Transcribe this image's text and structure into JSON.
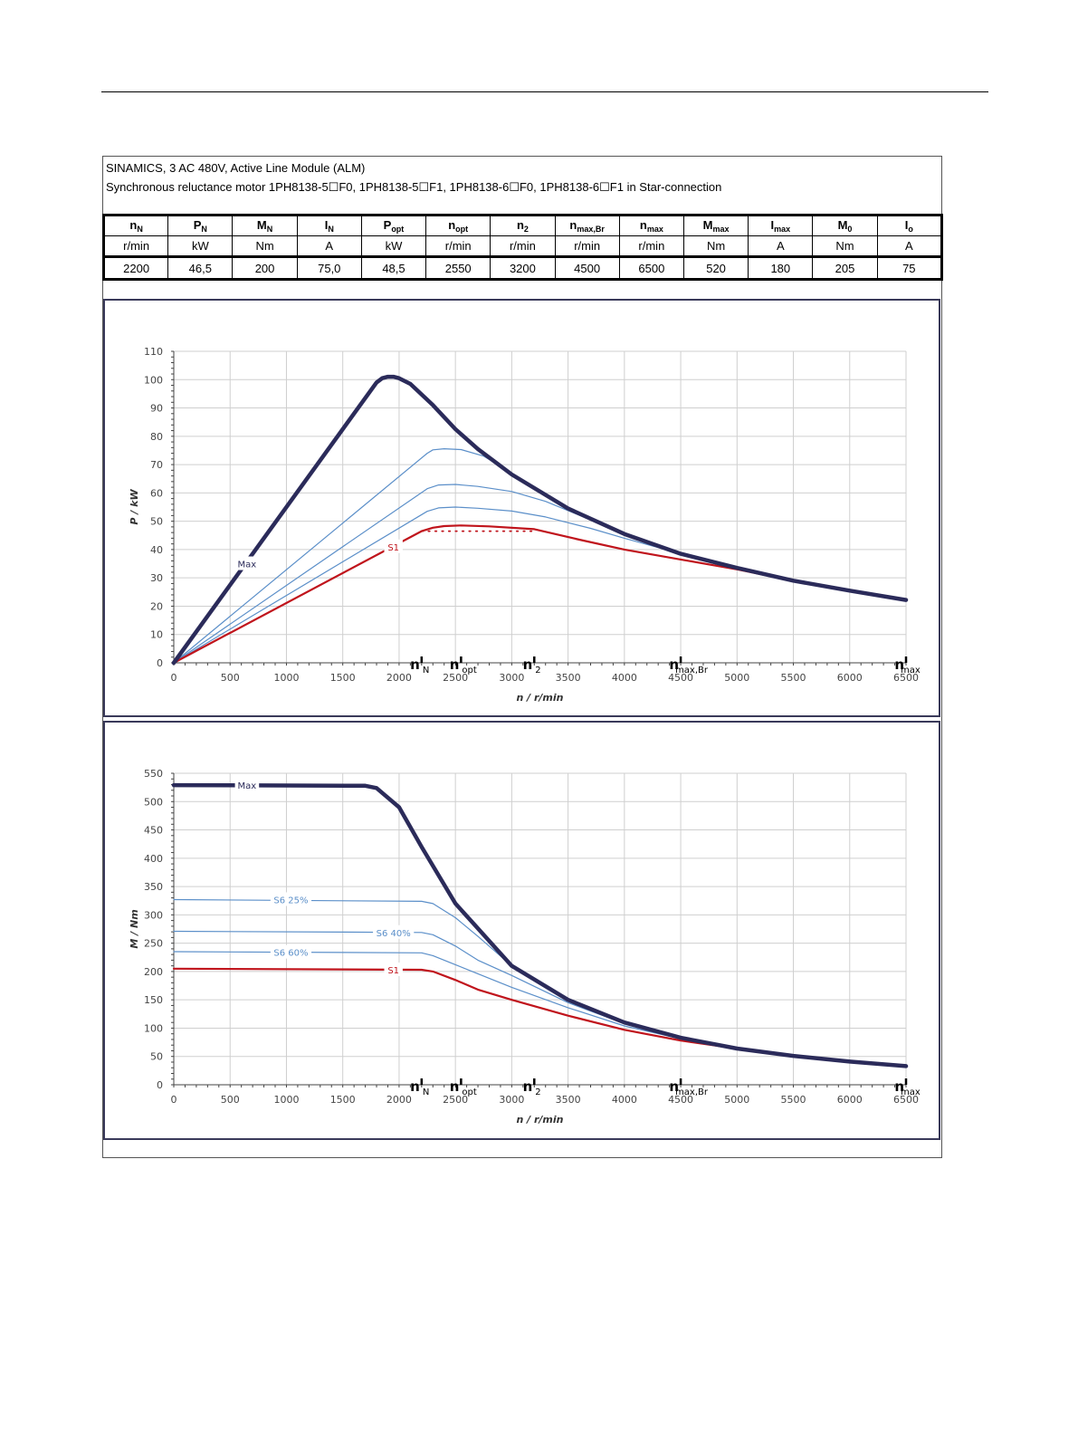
{
  "header": {
    "line1": "SINAMICS, 3 AC 480V, Active Line Module (ALM)",
    "line2": "Synchronous reluctance motor  1PH8138-5☐F0,  1PH8138-5☐F1,  1PH8138-6☐F0,  1PH8138-6☐F1   in Star-connection"
  },
  "spec_table": {
    "symbols": [
      {
        "main": "n",
        "sub": "N"
      },
      {
        "main": "P",
        "sub": "N"
      },
      {
        "main": "M",
        "sub": "N"
      },
      {
        "main": "I",
        "sub": "N"
      },
      {
        "main": "P",
        "sub": "opt"
      },
      {
        "main": "n",
        "sub": "opt"
      },
      {
        "main": "n",
        "sub": "2"
      },
      {
        "main": "n",
        "sub": "max,Br"
      },
      {
        "main": "n",
        "sub": "max"
      },
      {
        "main": "M",
        "sub": "max"
      },
      {
        "main": "I",
        "sub": "max"
      },
      {
        "main": "M",
        "sub": "0"
      },
      {
        "main": "I",
        "sub": "o"
      }
    ],
    "units": [
      "r/min",
      "kW",
      "Nm",
      "A",
      "kW",
      "r/min",
      "r/min",
      "r/min",
      "r/min",
      "Nm",
      "A",
      "Nm",
      "A"
    ],
    "values": [
      "2200",
      "46,5",
      "200",
      "75,0",
      "48,5",
      "2550",
      "3200",
      "4500",
      "6500",
      "520",
      "180",
      "205",
      "75"
    ]
  },
  "colors": {
    "max_curve": "#2b2b5a",
    "s6_curves": "#5b8fc9",
    "s1_curve": "#c0141c",
    "grid": "#cfcfcf",
    "axis": "#444444",
    "frame": "#3a3a5a"
  },
  "chart_data": [
    {
      "type": "line",
      "title": "",
      "xlabel": "n / r/min",
      "ylabel": "P / kW",
      "xlim": [
        0,
        6500
      ],
      "ylim": [
        0,
        110
      ],
      "xticks": [
        0,
        500,
        1000,
        1500,
        2000,
        2500,
        3000,
        3500,
        4000,
        4500,
        5000,
        5500,
        6000,
        6500
      ],
      "yticks": [
        0,
        10,
        20,
        30,
        40,
        50,
        60,
        70,
        80,
        90,
        100,
        110
      ],
      "grid": true,
      "speed_markers": [
        {
          "value": 2200,
          "label": "n",
          "sub": "N"
        },
        {
          "value": 2550,
          "label": "n",
          "sub": "opt"
        },
        {
          "value": 3200,
          "label": "n",
          "sub": "2"
        },
        {
          "value": 4500,
          "label": "n",
          "sub": "max,Br"
        },
        {
          "value": 6500,
          "label": "n",
          "sub": "max"
        }
      ],
      "series": [
        {
          "name": "Max",
          "label_x": 650,
          "label_y": 35,
          "role": "max",
          "x": [
            0,
            1800,
            1850,
            1900,
            1950,
            2000,
            2100,
            2300,
            2500,
            2700,
            3000,
            3500,
            4000,
            4500,
            5000,
            5500,
            6000,
            6500
          ],
          "y": [
            0,
            99,
            100.5,
            101,
            101,
            100.5,
            98.5,
            91,
            82.5,
            75.5,
            66.5,
            54.5,
            45.5,
            38.5,
            33.5,
            29,
            25.5,
            22.2
          ]
        },
        {
          "name": "",
          "role": "s6",
          "x": [
            0,
            2250,
            2300,
            2400,
            2550,
            2750,
            3000,
            3500,
            4000,
            4500,
            5000,
            5500,
            6000,
            6500
          ],
          "y": [
            0,
            74,
            75.2,
            75.6,
            75.3,
            73,
            67,
            54.5,
            45.5,
            38.5,
            33.5,
            29,
            25.5,
            22.2
          ]
        },
        {
          "name": "",
          "role": "s6",
          "x": [
            0,
            2250,
            2350,
            2500,
            2700,
            3000,
            3300,
            3700,
            4000,
            4500,
            5000,
            5500,
            6000,
            6500
          ],
          "y": [
            0,
            61.5,
            62.8,
            63,
            62.3,
            60.5,
            57,
            50.5,
            45,
            38.5,
            33.5,
            29,
            25.5,
            22.2
          ]
        },
        {
          "name": "",
          "role": "s6",
          "x": [
            0,
            2250,
            2350,
            2500,
            2700,
            3000,
            3300,
            3700,
            4000,
            4500,
            5000,
            5500,
            6000,
            6500
          ],
          "y": [
            0,
            53.5,
            54.7,
            55,
            54.6,
            53.6,
            51.5,
            47.5,
            44,
            38.5,
            33.5,
            29,
            25.5,
            22.2
          ]
        },
        {
          "name": "S1",
          "label_x": 1950,
          "label_y": 41,
          "role": "s1",
          "x": [
            0,
            2200,
            2300,
            2400,
            2550,
            2800,
            3200,
            3600,
            4000,
            4500,
            5000,
            5500,
            6000,
            6500
          ],
          "y": [
            0,
            46.5,
            47.7,
            48.3,
            48.5,
            48.2,
            47.2,
            43.5,
            40,
            36.5,
            33,
            29,
            25.5,
            22.2
          ]
        },
        {
          "name": "",
          "role": "s1-dotted",
          "x": [
            2200,
            3200
          ],
          "y": [
            46.5,
            46.5
          ]
        }
      ]
    },
    {
      "type": "line",
      "title": "",
      "xlabel": "n / r/min",
      "ylabel": "M / Nm",
      "xlim": [
        0,
        6500
      ],
      "ylim": [
        0,
        550
      ],
      "xticks": [
        0,
        500,
        1000,
        1500,
        2000,
        2500,
        3000,
        3500,
        4000,
        4500,
        5000,
        5500,
        6000,
        6500
      ],
      "yticks": [
        0,
        50,
        100,
        150,
        200,
        250,
        300,
        350,
        400,
        450,
        500,
        550
      ],
      "grid": true,
      "speed_markers": [
        {
          "value": 2200,
          "label": "n",
          "sub": "N"
        },
        {
          "value": 2550,
          "label": "n",
          "sub": "opt"
        },
        {
          "value": 3200,
          "label": "n",
          "sub": "2"
        },
        {
          "value": 4500,
          "label": "n",
          "sub": "max,Br"
        },
        {
          "value": 6500,
          "label": "n",
          "sub": "max"
        }
      ],
      "series": [
        {
          "name": "Max",
          "label_x": 650,
          "label_y": 529,
          "role": "max",
          "x": [
            0,
            1700,
            1800,
            2000,
            2200,
            2500,
            3000,
            3500,
            4000,
            4500,
            5000,
            5500,
            6000,
            6500
          ],
          "y": [
            529,
            528,
            524,
            490,
            420,
            320,
            210,
            150,
            110,
            83,
            64,
            51,
            41,
            33
          ]
        },
        {
          "name": "S6 25%",
          "label_x": 1040,
          "label_y": 327,
          "role": "s6",
          "x": [
            0,
            2200,
            2300,
            2500,
            2700,
            3000,
            3500,
            4000,
            4500,
            5000,
            5500,
            6000,
            6500
          ],
          "y": [
            327,
            324,
            320,
            295,
            262,
            210,
            150,
            110,
            83,
            64,
            51,
            41,
            33
          ]
        },
        {
          "name": "S6 40%",
          "label_x": 1950,
          "label_y": 269,
          "role": "s6",
          "x": [
            0,
            2200,
            2300,
            2500,
            2700,
            3000,
            3500,
            4000,
            4500,
            5000,
            5500,
            6000,
            6500
          ],
          "y": [
            271,
            269,
            265,
            245,
            220,
            193,
            145,
            108,
            83,
            64,
            51,
            41,
            33
          ]
        },
        {
          "name": "S6 60%",
          "label_x": 1040,
          "label_y": 234,
          "role": "s6",
          "x": [
            0,
            2200,
            2300,
            2500,
            2700,
            3000,
            3500,
            4000,
            4500,
            5000,
            5500,
            6000,
            6500
          ],
          "y": [
            235,
            233,
            228,
            212,
            196,
            172,
            136,
            104,
            81,
            64,
            51,
            41,
            33
          ]
        },
        {
          "name": "S1",
          "label_x": 1950,
          "label_y": 203,
          "role": "s1",
          "x": [
            0,
            2200,
            2300,
            2500,
            2700,
            3000,
            3500,
            4000,
            4500,
            5000,
            5500,
            6000,
            6500
          ],
          "y": [
            205,
            203,
            200,
            185,
            168,
            150,
            122,
            97,
            78,
            64,
            51,
            41,
            33
          ]
        }
      ]
    }
  ]
}
